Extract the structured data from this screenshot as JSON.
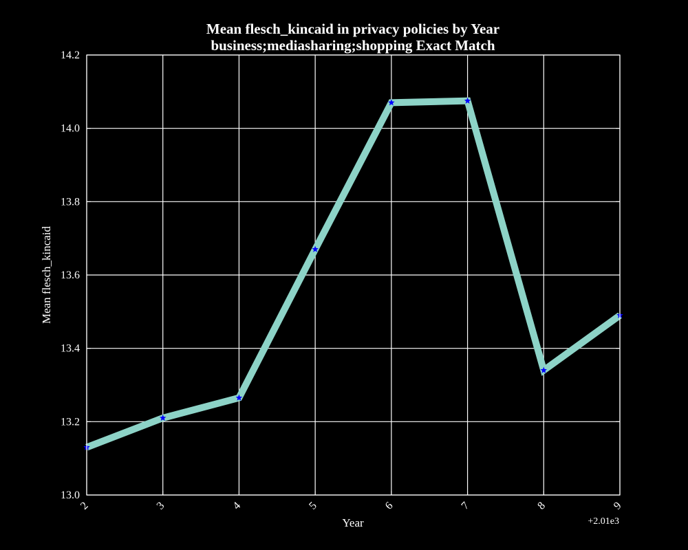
{
  "chart_data": {
    "type": "line",
    "title": "Mean flesch_kincaid in privacy policies by Year",
    "subtitle": "business;mediasharing;shopping Exact Match",
    "xlabel": "Year",
    "ylabel": "Mean flesch_kincaid",
    "x_offset_label": "+2.01e3",
    "x_tick_labels": [
      "2",
      "3",
      "4",
      "5",
      "6",
      "7",
      "8",
      "9"
    ],
    "y_tick_labels": [
      "13.0",
      "13.2",
      "13.4",
      "13.6",
      "13.8",
      "14.0",
      "14.2"
    ],
    "y_ticks": [
      13.0,
      13.2,
      13.4,
      13.6,
      13.8,
      14.0,
      14.2
    ],
    "xlim": [
      2012,
      2019
    ],
    "ylim": [
      13.0,
      14.2
    ],
    "grid": true,
    "series": [
      {
        "x": [
          2012,
          2013,
          2014,
          2015,
          2016,
          2017,
          2018,
          2019
        ],
        "values": [
          13.13,
          13.21,
          13.265,
          13.67,
          14.07,
          14.075,
          13.34,
          13.49
        ],
        "line_color": "#8dd3c7",
        "marker": "star",
        "marker_color": "#0000ff"
      }
    ]
  }
}
